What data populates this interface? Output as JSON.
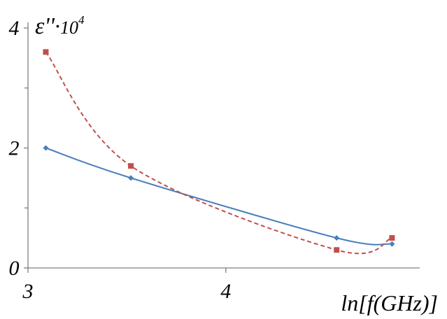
{
  "chart_data": {
    "type": "line",
    "ylabel": "ε''·10⁴",
    "ylabel_parts": {
      "symbol": "ε''",
      "dot": "·",
      "base": "10",
      "exponent": "4"
    },
    "xlabel": "ln[f(GHz)]",
    "xlim": [
      3.0,
      4.98
    ],
    "ylim": [
      0,
      4
    ],
    "x_ticks": [
      3,
      4
    ],
    "y_ticks": [
      0,
      2,
      4
    ],
    "y_minor_ticks": [
      1,
      3
    ],
    "grid": false,
    "legend": "none",
    "series": [
      {
        "color": "#4a7ebb",
        "line_style": "solid",
        "marker": "diamond",
        "points": [
          {
            "x": 3.09,
            "y": 2.0
          },
          {
            "x": 3.52,
            "y": 1.5
          },
          {
            "x": 4.56,
            "y": 0.5
          },
          {
            "x": 4.84,
            "y": 0.4
          }
        ]
      },
      {
        "color": "#c0504d",
        "line_style": "dashed",
        "marker": "square",
        "points": [
          {
            "x": 3.09,
            "y": 3.6
          },
          {
            "x": 3.52,
            "y": 1.7
          },
          {
            "x": 4.56,
            "y": 0.3
          },
          {
            "x": 4.84,
            "y": 0.5
          }
        ]
      }
    ]
  }
}
